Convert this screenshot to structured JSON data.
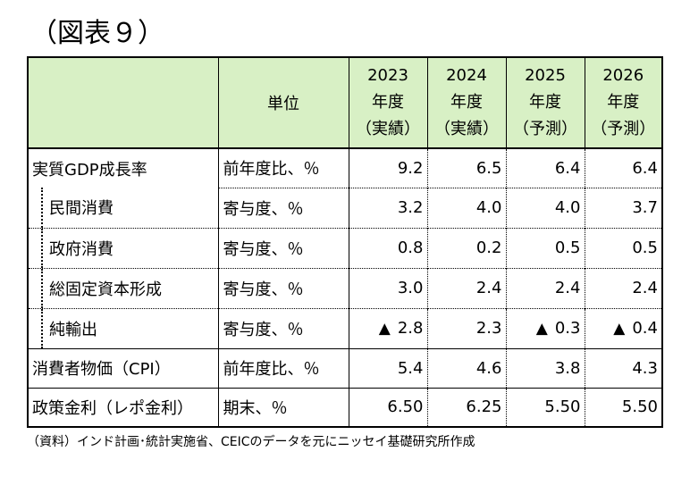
{
  "title": "（図表９）",
  "table": {
    "header": {
      "unit": "単位",
      "years": [
        {
          "year": "2023",
          "unit": "年度",
          "type": "（実績）"
        },
        {
          "year": "2024",
          "unit": "年度",
          "type": "（実績）"
        },
        {
          "year": "2025",
          "unit": "年度",
          "type": "（予測）"
        },
        {
          "year": "2026",
          "unit": "年度",
          "type": "（予測）"
        }
      ]
    },
    "rows": [
      {
        "label": "実質GDP成長率",
        "unit": "前年度比、％",
        "values": [
          "9.2",
          "6.5",
          "6.4",
          "6.4"
        ]
      },
      {
        "label": "民間消費",
        "unit": "寄与度、％",
        "values": [
          "3.2",
          "4.0",
          "4.0",
          "3.7"
        ]
      },
      {
        "label": "政府消費",
        "unit": "寄与度、％",
        "values": [
          "0.8",
          "0.2",
          "0.5",
          "0.5"
        ]
      },
      {
        "label": "総固定資本形成",
        "unit": "寄与度、％",
        "values": [
          "3.0",
          "2.4",
          "2.4",
          "2.4"
        ]
      },
      {
        "label": "純輸出",
        "unit": "寄与度、％",
        "values": [
          "2.8",
          "2.3",
          "0.3",
          "0.4"
        ],
        "negative_marks": [
          "▲",
          "",
          "▲",
          "▲"
        ]
      },
      {
        "label": "消費者物価（CPI）",
        "unit": "前年度比、％",
        "values": [
          "5.4",
          "4.6",
          "3.8",
          "4.3"
        ]
      },
      {
        "label": "政策金利（レポ金利）",
        "unit": "期末、％",
        "values": [
          "6.50",
          "6.25",
          "5.50",
          "5.50"
        ]
      }
    ]
  },
  "note": "（資料）インド計画･統計実施省、CEICのデータを元にニッセイ基礎研究所作成"
}
